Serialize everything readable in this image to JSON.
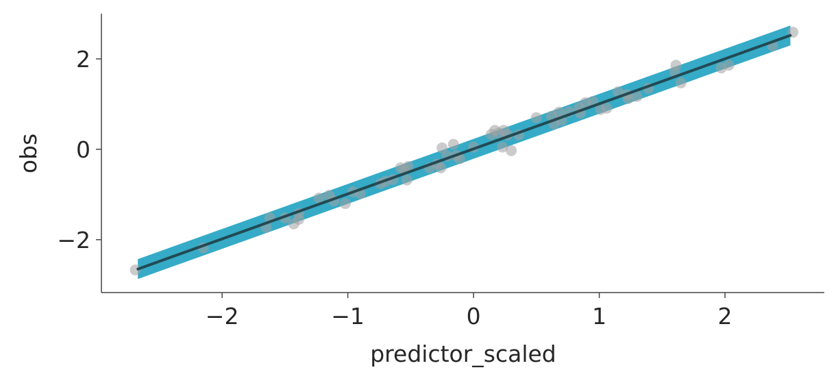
{
  "chart_data": {
    "type": "scatter",
    "title": "",
    "xlabel": "predictor_scaled",
    "ylabel": "obs",
    "xlim": [
      -2.96,
      2.79
    ],
    "ylim": [
      -3.17,
      3.0
    ],
    "xticks": [
      -2,
      -1,
      0,
      1,
      2
    ],
    "yticks": [
      -2,
      0,
      2
    ],
    "xtick_labels": [
      "−2",
      "−1",
      "0",
      "1",
      "2"
    ],
    "ytick_labels": [
      "−2",
      "0",
      "2"
    ],
    "grid": false,
    "colors": {
      "points": "#a0a0a0",
      "line": "#1f3f47",
      "band": "#35abc7",
      "axis": "#444444"
    },
    "fit_line": {
      "x": [
        -2.67,
        2.52
      ],
      "y": [
        -2.65,
        2.52
      ]
    },
    "band_halfwidth": 0.22,
    "points": [
      [
        -2.69,
        -2.67
      ],
      [
        -2.15,
        -2.18
      ],
      [
        -1.65,
        -1.73
      ],
      [
        -1.62,
        -1.52
      ],
      [
        -1.5,
        -1.52
      ],
      [
        -1.43,
        -1.65
      ],
      [
        -1.39,
        -1.55
      ],
      [
        -1.39,
        -1.42
      ],
      [
        -1.23,
        -1.08
      ],
      [
        -1.15,
        -1.02
      ],
      [
        -1.11,
        -1.14
      ],
      [
        -1.02,
        -1.2
      ],
      [
        -0.96,
        -0.94
      ],
      [
        -0.9,
        -0.98
      ],
      [
        -0.74,
        -0.76
      ],
      [
        -0.7,
        -0.71
      ],
      [
        -0.64,
        -0.67
      ],
      [
        -0.58,
        -0.41
      ],
      [
        -0.53,
        -0.68
      ],
      [
        -0.55,
        -0.45
      ],
      [
        -0.52,
        -0.38
      ],
      [
        -0.35,
        -0.41
      ],
      [
        -0.29,
        -0.33
      ],
      [
        -0.26,
        -0.41
      ],
      [
        -0.25,
        0.03
      ],
      [
        -0.21,
        -0.15
      ],
      [
        -0.16,
        0.11
      ],
      [
        -0.14,
        -0.14
      ],
      [
        -0.11,
        -0.21
      ],
      [
        0.0,
        0.05
      ],
      [
        0.14,
        0.33
      ],
      [
        0.17,
        0.42
      ],
      [
        0.2,
        0.36
      ],
      [
        0.24,
        0.42
      ],
      [
        0.27,
        0.32
      ],
      [
        0.23,
        0.05
      ],
      [
        0.3,
        -0.03
      ],
      [
        0.36,
        0.32
      ],
      [
        0.5,
        0.7
      ],
      [
        0.62,
        0.73
      ],
      [
        0.64,
        0.56
      ],
      [
        0.68,
        0.82
      ],
      [
        0.7,
        0.64
      ],
      [
        0.76,
        0.83
      ],
      [
        0.84,
        0.92
      ],
      [
        0.85,
        0.8
      ],
      [
        0.89,
        1.03
      ],
      [
        0.95,
        1.06
      ],
      [
        1.01,
        0.88
      ],
      [
        1.06,
        0.91
      ],
      [
        1.15,
        1.27
      ],
      [
        1.22,
        1.21
      ],
      [
        1.23,
        1.12
      ],
      [
        1.3,
        1.17
      ],
      [
        1.39,
        1.35
      ],
      [
        1.6,
        1.71
      ],
      [
        1.61,
        1.86
      ],
      [
        1.65,
        1.47
      ],
      [
        1.97,
        1.8
      ],
      [
        2.03,
        1.86
      ],
      [
        2.38,
        2.29
      ],
      [
        2.54,
        2.59
      ]
    ]
  }
}
